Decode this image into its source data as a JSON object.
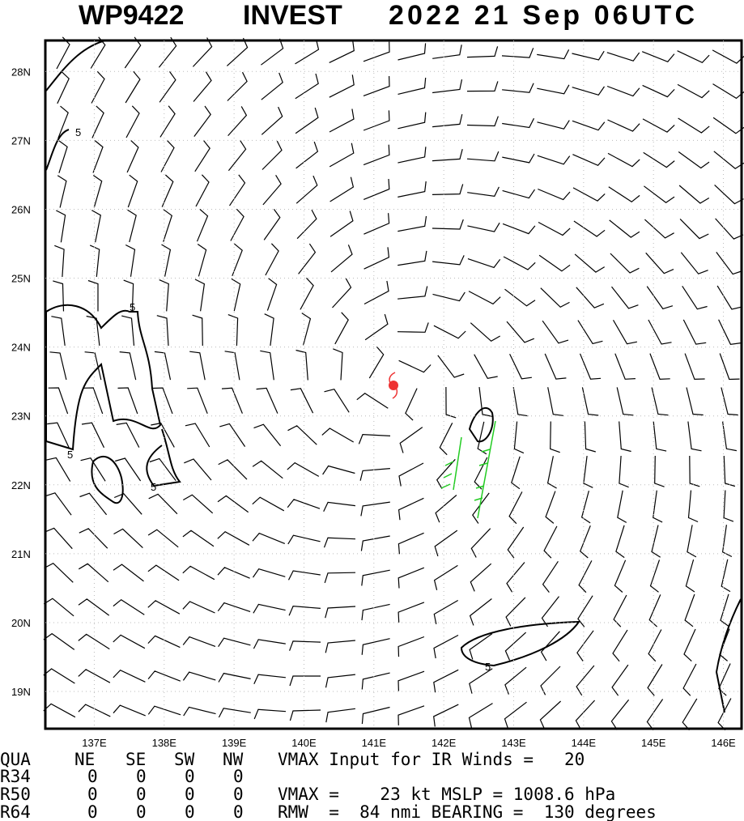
{
  "header": {
    "storm_id": "WP9422",
    "storm_name": "INVEST",
    "datetime": "2022 21 Sep 06UTC"
  },
  "map": {
    "xlim": [
      136.3,
      146.26
    ],
    "ylim": [
      18.46,
      28.45
    ],
    "xticks": [
      {
        "value": 137,
        "label": "137E"
      },
      {
        "value": 138,
        "label": "138E"
      },
      {
        "value": 139,
        "label": "139E"
      },
      {
        "value": 140,
        "label": "140E"
      },
      {
        "value": 141,
        "label": "141E"
      },
      {
        "value": 142,
        "label": "142E"
      },
      {
        "value": 143,
        "label": "143E"
      },
      {
        "value": 144,
        "label": "144E"
      },
      {
        "value": 145,
        "label": "145E"
      },
      {
        "value": 146,
        "label": "146E"
      }
    ],
    "yticks": [
      {
        "value": 19,
        "label": "19N"
      },
      {
        "value": 20,
        "label": "20N"
      },
      {
        "value": 21,
        "label": "21N"
      },
      {
        "value": 22,
        "label": "22N"
      },
      {
        "value": 23,
        "label": "23N"
      },
      {
        "value": 24,
        "label": "24N"
      },
      {
        "value": 25,
        "label": "25N"
      },
      {
        "value": 26,
        "label": "26N"
      },
      {
        "value": 27,
        "label": "27N"
      },
      {
        "value": 28,
        "label": "28N"
      }
    ],
    "center": {
      "lon": 141.29,
      "lat": 23.44
    },
    "contour_labels": [
      "5",
      "5",
      "5",
      "5",
      "5"
    ]
  },
  "table": {
    "header": [
      "QUA",
      "NE",
      "SE",
      "SW",
      "NW"
    ],
    "rows": [
      [
        "R34",
        "0",
        "0",
        "0",
        "0"
      ],
      [
        "R50",
        "0",
        "0",
        "0",
        "0"
      ],
      [
        "R64",
        "0",
        "0",
        "0",
        "0"
      ]
    ],
    "notes": [
      "VMAX Input for IR Winds =   20",
      "VMAX =    23 kt MSLP = 1008.6 hPa",
      "RMW  =  84 nmi BEARING =  130 degrees"
    ]
  }
}
